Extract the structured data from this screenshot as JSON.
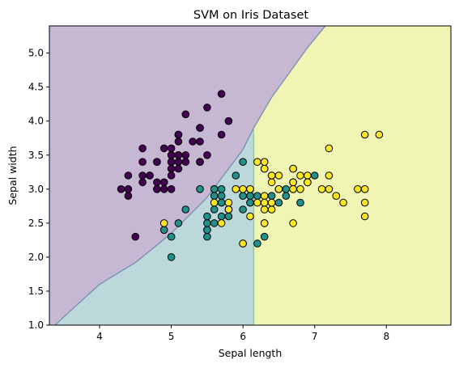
{
  "chart_data": {
    "type": "scatter",
    "title": "SVM on Iris Dataset",
    "xlabel": "Sepal length",
    "ylabel": "Sepal width",
    "xlim": [
      3.3,
      8.9
    ],
    "ylim": [
      1.0,
      5.4
    ],
    "xticks": [
      4,
      5,
      6,
      7,
      8
    ],
    "yticks": [
      1.0,
      1.5,
      2.0,
      2.5,
      3.0,
      3.5,
      4.0,
      4.5,
      5.0
    ],
    "grid": false,
    "legend": "none",
    "decision_regions": [
      {
        "class": 0,
        "color": "#c6b7d2"
      },
      {
        "class": 1,
        "color": "#bdd8db"
      },
      {
        "class": 2,
        "color": "#f1f5b4"
      }
    ],
    "decision_boundaries": {
      "class0_vs_rest": [
        [
          3.38,
          1.0
        ],
        [
          3.5,
          1.12
        ],
        [
          4.0,
          1.6
        ],
        [
          4.5,
          1.92
        ],
        [
          5.0,
          2.35
        ],
        [
          5.5,
          2.88
        ],
        [
          6.0,
          3.58
        ],
        [
          6.14,
          3.88
        ],
        [
          6.4,
          4.35
        ],
        [
          6.9,
          5.08
        ],
        [
          7.15,
          5.4
        ]
      ],
      "class1_vs_class2": [
        [
          6.15,
          1.0
        ],
        [
          6.15,
          3.88
        ]
      ]
    },
    "series": [
      {
        "class": 0,
        "color": "#440154",
        "points": [
          [
            5.1,
            3.5
          ],
          [
            4.9,
            3.0
          ],
          [
            4.7,
            3.2
          ],
          [
            4.6,
            3.1
          ],
          [
            5.0,
            3.6
          ],
          [
            5.4,
            3.9
          ],
          [
            4.6,
            3.4
          ],
          [
            5.0,
            3.4
          ],
          [
            4.4,
            2.9
          ],
          [
            4.9,
            3.1
          ],
          [
            5.4,
            3.7
          ],
          [
            4.8,
            3.4
          ],
          [
            4.8,
            3.0
          ],
          [
            4.3,
            3.0
          ],
          [
            5.8,
            4.0
          ],
          [
            5.7,
            4.4
          ],
          [
            5.4,
            3.9
          ],
          [
            5.1,
            3.5
          ],
          [
            5.7,
            3.8
          ],
          [
            5.1,
            3.8
          ],
          [
            5.4,
            3.4
          ],
          [
            5.1,
            3.7
          ],
          [
            4.6,
            3.6
          ],
          [
            5.1,
            3.3
          ],
          [
            4.8,
            3.4
          ],
          [
            5.0,
            3.0
          ],
          [
            5.0,
            3.4
          ],
          [
            5.2,
            3.5
          ],
          [
            5.2,
            3.4
          ],
          [
            4.7,
            3.2
          ],
          [
            4.8,
            3.1
          ],
          [
            5.4,
            3.4
          ],
          [
            5.2,
            4.1
          ],
          [
            5.5,
            4.2
          ],
          [
            4.9,
            3.1
          ],
          [
            5.0,
            3.2
          ],
          [
            5.5,
            3.5
          ],
          [
            4.9,
            3.6
          ],
          [
            4.4,
            3.0
          ],
          [
            5.1,
            3.4
          ],
          [
            5.0,
            3.5
          ],
          [
            4.5,
            2.3
          ],
          [
            4.4,
            3.2
          ],
          [
            5.0,
            3.5
          ],
          [
            5.1,
            3.8
          ],
          [
            4.8,
            3.0
          ],
          [
            5.1,
            3.8
          ],
          [
            4.6,
            3.2
          ],
          [
            5.3,
            3.7
          ],
          [
            5.0,
            3.3
          ]
        ]
      },
      {
        "class": 1,
        "color": "#21918c",
        "points": [
          [
            7.0,
            3.2
          ],
          [
            6.4,
            3.2
          ],
          [
            6.9,
            3.1
          ],
          [
            5.5,
            2.3
          ],
          [
            6.5,
            2.8
          ],
          [
            5.7,
            2.8
          ],
          [
            6.3,
            3.3
          ],
          [
            4.9,
            2.4
          ],
          [
            6.6,
            2.9
          ],
          [
            5.2,
            2.7
          ],
          [
            5.0,
            2.0
          ],
          [
            5.9,
            3.0
          ],
          [
            6.0,
            2.2
          ],
          [
            6.1,
            2.9
          ],
          [
            5.6,
            2.9
          ],
          [
            6.7,
            3.1
          ],
          [
            5.6,
            3.0
          ],
          [
            5.8,
            2.7
          ],
          [
            6.2,
            2.2
          ],
          [
            5.6,
            2.5
          ],
          [
            5.9,
            3.2
          ],
          [
            6.1,
            2.8
          ],
          [
            6.3,
            2.5
          ],
          [
            6.1,
            2.8
          ],
          [
            6.4,
            2.9
          ],
          [
            6.6,
            3.0
          ],
          [
            6.8,
            2.8
          ],
          [
            6.7,
            3.0
          ],
          [
            6.0,
            2.9
          ],
          [
            5.7,
            2.6
          ],
          [
            5.5,
            2.4
          ],
          [
            5.5,
            2.4
          ],
          [
            5.8,
            2.7
          ],
          [
            6.0,
            2.7
          ],
          [
            5.4,
            3.0
          ],
          [
            6.0,
            3.4
          ],
          [
            6.7,
            3.1
          ],
          [
            6.3,
            2.3
          ],
          [
            5.6,
            3.0
          ],
          [
            5.5,
            2.5
          ],
          [
            5.5,
            2.6
          ],
          [
            6.1,
            3.0
          ],
          [
            5.8,
            2.6
          ],
          [
            5.0,
            2.3
          ],
          [
            5.6,
            2.7
          ],
          [
            5.7,
            3.0
          ],
          [
            5.7,
            2.9
          ],
          [
            6.2,
            2.9
          ],
          [
            5.1,
            2.5
          ],
          [
            5.7,
            2.8
          ]
        ]
      },
      {
        "class": 2,
        "color": "#fde725",
        "points": [
          [
            6.3,
            3.3
          ],
          [
            5.8,
            2.7
          ],
          [
            7.1,
            3.0
          ],
          [
            6.3,
            2.9
          ],
          [
            6.5,
            3.0
          ],
          [
            7.6,
            3.0
          ],
          [
            4.9,
            2.5
          ],
          [
            7.3,
            2.9
          ],
          [
            6.7,
            2.5
          ],
          [
            7.2,
            3.6
          ],
          [
            6.5,
            3.2
          ],
          [
            6.4,
            2.7
          ],
          [
            6.8,
            3.0
          ],
          [
            5.7,
            2.5
          ],
          [
            5.8,
            2.8
          ],
          [
            6.4,
            3.2
          ],
          [
            6.5,
            3.0
          ],
          [
            7.7,
            3.8
          ],
          [
            7.7,
            2.6
          ],
          [
            6.0,
            2.2
          ],
          [
            6.9,
            3.2
          ],
          [
            5.6,
            2.8
          ],
          [
            7.7,
            2.8
          ],
          [
            6.3,
            2.7
          ],
          [
            6.7,
            3.3
          ],
          [
            7.2,
            3.2
          ],
          [
            6.2,
            2.8
          ],
          [
            6.1,
            3.0
          ],
          [
            6.4,
            2.8
          ],
          [
            7.2,
            3.0
          ],
          [
            7.4,
            2.8
          ],
          [
            7.9,
            3.8
          ],
          [
            6.4,
            2.8
          ],
          [
            6.3,
            2.8
          ],
          [
            6.1,
            2.6
          ],
          [
            7.7,
            3.0
          ],
          [
            6.3,
            3.4
          ],
          [
            6.4,
            3.1
          ],
          [
            6.0,
            3.0
          ],
          [
            6.9,
            3.1
          ],
          [
            6.7,
            3.1
          ],
          [
            6.9,
            3.1
          ],
          [
            5.8,
            2.7
          ],
          [
            6.8,
            3.2
          ],
          [
            6.7,
            3.3
          ],
          [
            6.7,
            3.0
          ],
          [
            6.3,
            2.5
          ],
          [
            6.5,
            3.0
          ],
          [
            6.2,
            3.4
          ],
          [
            5.9,
            3.0
          ]
        ]
      }
    ]
  }
}
